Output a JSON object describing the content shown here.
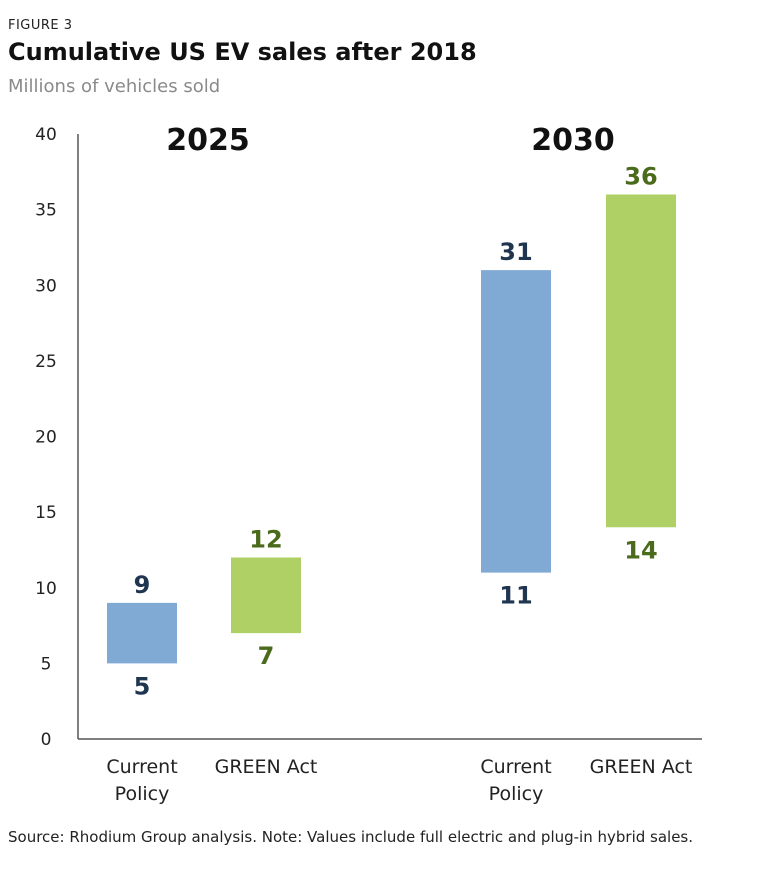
{
  "figure_label": "FIGURE 3",
  "title": "Cumulative US EV sales after 2018",
  "subtitle": "Millions of vehicles sold",
  "source": "Source: Rhodium Group analysis. Note: Values include full electric and plug-in hybrid sales.",
  "colors": {
    "current_policy": "#80a9d4",
    "current_policy_label": "#1f3550",
    "green_act": "#aed064",
    "green_act_label": "#4a6a1c",
    "axis": "#555555"
  },
  "chart_data": {
    "type": "bar",
    "subtype": "floating-range",
    "ylim": [
      0,
      40
    ],
    "yticks": [
      0,
      5,
      10,
      15,
      20,
      25,
      30,
      35,
      40
    ],
    "grid": false,
    "groups": [
      "2025",
      "2030"
    ],
    "categories": [
      {
        "group": "2025",
        "label_lines": [
          "Current",
          "Policy"
        ],
        "series": "current_policy",
        "low": 5,
        "high": 9,
        "low_label": "5",
        "high_label": "9"
      },
      {
        "group": "2025",
        "label_lines": [
          "GREEN Act"
        ],
        "series": "green_act",
        "low": 7,
        "high": 12,
        "low_label": "7",
        "high_label": "12"
      },
      {
        "group": "2030",
        "label_lines": [
          "Current",
          "Policy"
        ],
        "series": "current_policy",
        "low": 11,
        "high": 31,
        "low_label": "11",
        "high_label": "31"
      },
      {
        "group": "2030",
        "label_lines": [
          "GREEN Act"
        ],
        "series": "green_act",
        "low": 14,
        "high": 36,
        "low_label": "14",
        "high_label": "36"
      }
    ]
  }
}
